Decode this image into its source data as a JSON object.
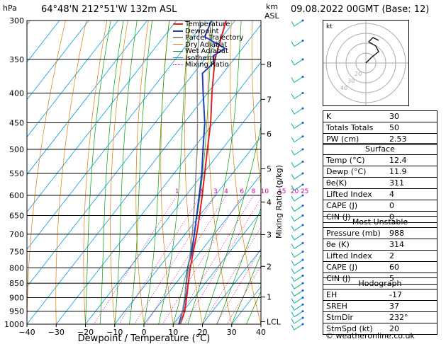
{
  "header": {
    "hpa_label": "hPa",
    "location": "64°48'N  212°51'W  132m ASL",
    "km_label": "km",
    "asl_label": "ASL",
    "datetime": "09.08.2022  00GMT  (Base: 12)"
  },
  "legend": [
    {
      "label": "Temperature",
      "color": "#e02020",
      "style": "solid"
    },
    {
      "label": "Dewpoint",
      "color": "#2040c0",
      "style": "solid"
    },
    {
      "label": "Parcel Trajectory",
      "color": "#909090",
      "style": "solid"
    },
    {
      "label": "Dry Adiabat",
      "color": "#e07a00",
      "style": "solid"
    },
    {
      "label": "Wet Adiabat",
      "color": "#00a000",
      "style": "solid"
    },
    {
      "label": "Isotherm",
      "color": "#00a0e0",
      "style": "solid"
    },
    {
      "label": "Mixing Ratio",
      "color": "#d000a0",
      "style": "dotted"
    }
  ],
  "chart_data": {
    "type": "line",
    "xlabel": "Dewpoint / Temperature (°C)",
    "ylabel": "hPa",
    "right_axis_label": "Mixing Ratio (g/kg)",
    "xlim": [
      -40,
      40
    ],
    "ylim": [
      1000,
      300
    ],
    "x_ticks": [
      "−40",
      "−30",
      "−20",
      "−10",
      "0",
      "10",
      "20",
      "30",
      "40"
    ],
    "pressure_levels": [
      300,
      350,
      400,
      450,
      500,
      550,
      600,
      650,
      700,
      750,
      800,
      850,
      900,
      950,
      1000
    ],
    "km_ticks": [
      {
        "label": "8",
        "p": 357
      },
      {
        "label": "7",
        "p": 410
      },
      {
        "label": "6",
        "p": 470
      },
      {
        "label": "5",
        "p": 540
      },
      {
        "label": "4",
        "p": 616
      },
      {
        "label": "3",
        "p": 701
      },
      {
        "label": "2",
        "p": 795
      },
      {
        "label": "1",
        "p": 898
      },
      {
        "label": "LCL",
        "p": 990
      }
    ],
    "mixing_ratio_labels": [
      "1",
      "2",
      "3",
      "4",
      "6",
      "8",
      "10",
      "15",
      "20",
      "25"
    ],
    "series": [
      {
        "name": "Temperature",
        "color": "#e02020",
        "points": [
          [
            1000,
            12.4
          ],
          [
            950,
            10.5
          ],
          [
            900,
            7.5
          ],
          [
            850,
            4.2
          ],
          [
            800,
            0.8
          ],
          [
            750,
            -2.5
          ],
          [
            700,
            -6.0
          ],
          [
            650,
            -10.0
          ],
          [
            600,
            -14.5
          ],
          [
            550,
            -19.5
          ],
          [
            500,
            -25.0
          ],
          [
            450,
            -31.0
          ],
          [
            400,
            -38.5
          ],
          [
            350,
            -46.5
          ],
          [
            300,
            -53.0
          ]
        ]
      },
      {
        "name": "Dewpoint",
        "color": "#2040c0",
        "points": [
          [
            1000,
            11.9
          ],
          [
            950,
            9.8
          ],
          [
            900,
            7.0
          ],
          [
            850,
            3.5
          ],
          [
            800,
            0.0
          ],
          [
            785,
            -1.0
          ],
          [
            750,
            -3.0
          ],
          [
            700,
            -6.8
          ],
          [
            650,
            -11.0
          ],
          [
            600,
            -15.5
          ],
          [
            550,
            -20.5
          ],
          [
            500,
            -26.5
          ],
          [
            450,
            -33.0
          ],
          [
            400,
            -41.5
          ],
          [
            370,
            -47
          ],
          [
            355,
            -46
          ],
          [
            345,
            -48
          ],
          [
            335,
            -46
          ],
          [
            320,
            -56
          ],
          [
            300,
            -58
          ]
        ]
      },
      {
        "name": "Parcel Trajectory",
        "color": "#909090",
        "points": [
          [
            1000,
            12.4
          ],
          [
            950,
            9.7
          ],
          [
            900,
            6.8
          ],
          [
            850,
            3.6
          ],
          [
            800,
            0.2
          ],
          [
            750,
            -3.5
          ],
          [
            700,
            -7.5
          ],
          [
            650,
            -12.0
          ],
          [
            600,
            -17.0
          ],
          [
            550,
            -22.5
          ],
          [
            500,
            -28.5
          ],
          [
            450,
            -35.5
          ],
          [
            400,
            -43.5
          ],
          [
            350,
            -52.5
          ],
          [
            300,
            -62.0
          ]
        ]
      }
    ]
  },
  "indices": [
    {
      "key": "K",
      "value": "30"
    },
    {
      "key": "Totals Totals",
      "value": "50"
    },
    {
      "key": "PW (cm)",
      "value": "2.53"
    }
  ],
  "surface": {
    "title": "Surface",
    "rows": [
      {
        "key": "Temp (°C)",
        "value": "12.4"
      },
      {
        "key": "Dewp (°C)",
        "value": "11.9"
      },
      {
        "key": "θe(K)",
        "value": "311"
      },
      {
        "key": "Lifted Index",
        "value": "4"
      },
      {
        "key": "CAPE (J)",
        "value": "0"
      },
      {
        "key": "CIN (J)",
        "value": "0"
      }
    ]
  },
  "most_unstable": {
    "title": "Most Unstable",
    "rows": [
      {
        "key": "Pressure (mb)",
        "value": "988"
      },
      {
        "key": "θe (K)",
        "value": "314"
      },
      {
        "key": "Lifted Index",
        "value": "2"
      },
      {
        "key": "CAPE (J)",
        "value": "60"
      },
      {
        "key": "CIN (J)",
        "value": "5"
      }
    ]
  },
  "hodograph": {
    "title": "Hodograph",
    "kt_label": "kt",
    "ring_labels": [
      "20",
      "30",
      "40"
    ],
    "rows": [
      {
        "key": "EH",
        "value": "-17"
      },
      {
        "key": "SREH",
        "value": "37"
      },
      {
        "key": "StmDir",
        "value": "232°"
      },
      {
        "key": "StmSpd (kt)",
        "value": "20"
      }
    ]
  },
  "footer": "© weatheronline.co.uk"
}
